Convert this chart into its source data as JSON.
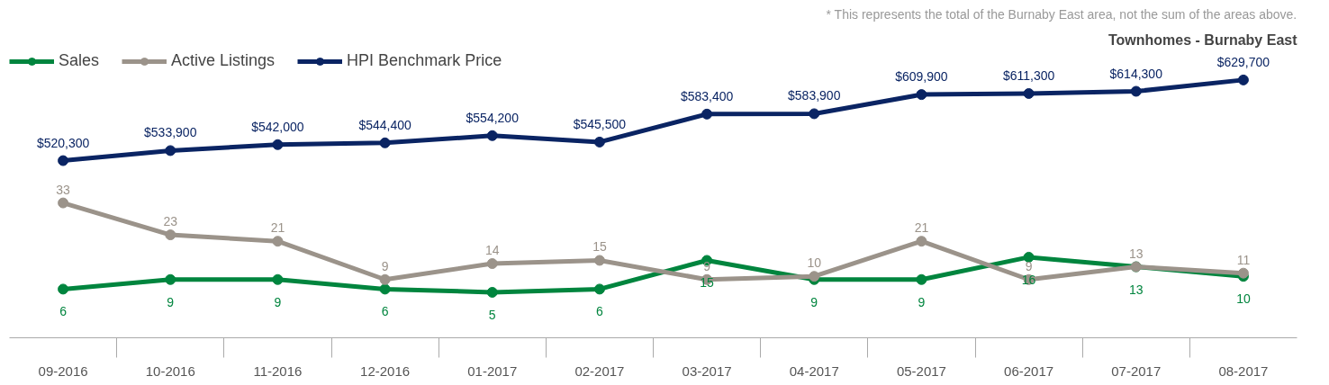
{
  "chart_data": [
    {
      "type": "line",
      "title": "Townhomes - Burnaby East",
      "annotations": [
        "* This represents the total of the Burnaby East area, not the sum of the areas above."
      ],
      "categories": [
        "09-2016",
        "10-2016",
        "11-2016",
        "12-2016",
        "01-2017",
        "02-2017",
        "03-2017",
        "04-2017",
        "05-2017",
        "06-2017",
        "07-2017",
        "08-2017"
      ],
      "series": [
        {
          "name": "HPI Benchmark Price",
          "color": "#0a2463",
          "values": [
            520300,
            533900,
            542000,
            544400,
            554200,
            545500,
            583400,
            583900,
            609900,
            611300,
            614300,
            629700
          ],
          "value_labels": [
            "$520,300",
            "$533,900",
            "$542,000",
            "$544,400",
            "$554,200",
            "$545,500",
            "$583,400",
            "$583,900",
            "$609,900",
            "$611,300",
            "$614,300",
            "$629,700"
          ]
        }
      ],
      "tick_labels": false,
      "legend": "top left",
      "marker": "circle",
      "line_style": "solid"
    },
    {
      "type": "line",
      "categories": [
        "09-2016",
        "10-2016",
        "11-2016",
        "12-2016",
        "01-2017",
        "02-2017",
        "03-2017",
        "04-2017",
        "05-2017",
        "06-2017",
        "07-2017",
        "08-2017"
      ],
      "series": [
        {
          "name": "Sales",
          "color": "#00853e",
          "values": [
            6,
            9,
            9,
            6,
            5,
            6,
            15,
            9,
            9,
            16,
            13,
            10
          ],
          "value_labels": [
            "6",
            "9",
            "9",
            "6",
            "5",
            "6",
            "15",
            "9",
            "9",
            "16",
            "13",
            "10"
          ]
        },
        {
          "name": "Active Listings",
          "color": "#9b938a",
          "values": [
            33,
            23,
            21,
            9,
            14,
            15,
            9,
            10,
            21,
            9,
            13,
            11
          ],
          "value_labels": [
            "33",
            "23",
            "21",
            "9",
            "14",
            "15",
            "9",
            "10",
            "21",
            "9",
            "13",
            "11"
          ]
        }
      ],
      "tick_labels": "x",
      "legend": "top left",
      "marker": "circle",
      "line_style": "solid"
    }
  ]
}
